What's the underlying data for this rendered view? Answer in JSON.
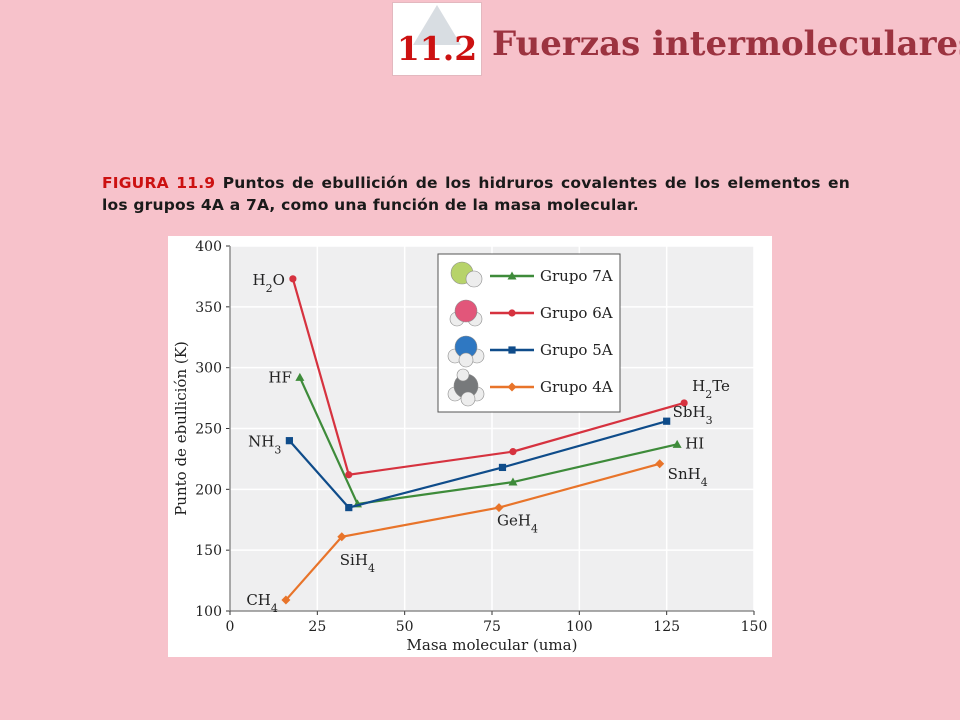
{
  "header": {
    "section_number": "11.2",
    "title": "Fuerzas intermoleculares"
  },
  "caption": {
    "label": "FIGURA 11.9",
    "text": "Puntos de ebullición de los hidruros covalentes de los elementos en los grupos  4A a 7A, como una función de la masa molecular."
  },
  "colors": {
    "background": "#f7c2cb",
    "section_number": "#cc1111",
    "title": "#9c3340",
    "caption_label": "#cc1111"
  },
  "chart_data": {
    "type": "line",
    "xlabel": "Masa molecular (uma)",
    "ylabel": "Punto de ebullición (K)",
    "xlim": [
      0,
      150
    ],
    "ylim": [
      100,
      400
    ],
    "xticks": [
      "0",
      "25",
      "50",
      "75",
      "100",
      "125",
      "150"
    ],
    "yticks": [
      "100",
      "150",
      "200",
      "250",
      "300",
      "350",
      "400"
    ],
    "grid": true,
    "legend_position": "top-center",
    "series": [
      {
        "name": "Grupo 7A",
        "color": "#3e8b3a",
        "marker": "triangle",
        "molecule_icon": "hf-molecule-icon",
        "points": [
          {
            "x": 20,
            "y": 292,
            "label": "HF"
          },
          {
            "x": 36.5,
            "y": 188
          },
          {
            "x": 81,
            "y": 206
          },
          {
            "x": 128,
            "y": 237,
            "label": "HI"
          }
        ]
      },
      {
        "name": "Grupo 6A",
        "color": "#d6323f",
        "marker": "circle",
        "molecule_icon": "h2o-molecule-icon",
        "points": [
          {
            "x": 18,
            "y": 373,
            "label": "H2O"
          },
          {
            "x": 34,
            "y": 212
          },
          {
            "x": 81,
            "y": 231
          },
          {
            "x": 130,
            "y": 271,
            "label": "H2Te"
          }
        ]
      },
      {
        "name": "Grupo 5A",
        "color": "#0f4c8a",
        "marker": "square",
        "molecule_icon": "nh3-molecule-icon",
        "points": [
          {
            "x": 17,
            "y": 240,
            "label": "NH3"
          },
          {
            "x": 34,
            "y": 185
          },
          {
            "x": 78,
            "y": 218
          },
          {
            "x": 125,
            "y": 256,
            "label": "SbH3"
          }
        ]
      },
      {
        "name": "Grupo 4A",
        "color": "#e8742a",
        "marker": "diamond",
        "molecule_icon": "ch4-molecule-icon",
        "points": [
          {
            "x": 16,
            "y": 109,
            "label": "CH4"
          },
          {
            "x": 32,
            "y": 161,
            "label": "SiH4"
          },
          {
            "x": 77,
            "y": 185,
            "label": "GeH4"
          },
          {
            "x": 123,
            "y": 221,
            "label": "SnH4"
          }
        ]
      }
    ]
  }
}
